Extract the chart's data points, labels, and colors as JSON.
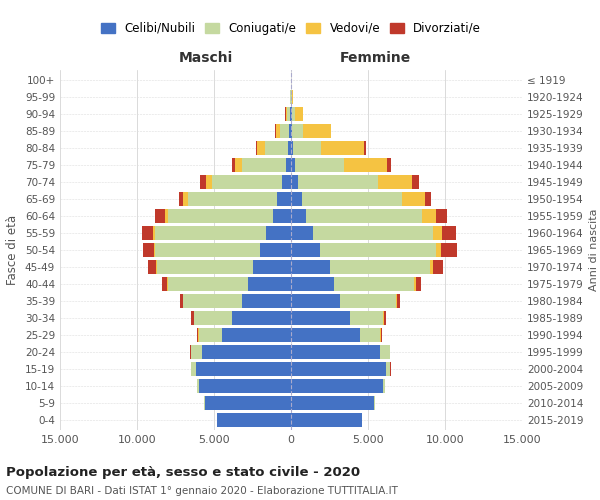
{
  "age_groups": [
    "0-4",
    "5-9",
    "10-14",
    "15-19",
    "20-24",
    "25-29",
    "30-34",
    "35-39",
    "40-44",
    "45-49",
    "50-54",
    "55-59",
    "60-64",
    "65-69",
    "70-74",
    "75-79",
    "80-84",
    "85-89",
    "90-94",
    "95-99",
    "100+"
  ],
  "birth_years": [
    "2015-2019",
    "2010-2014",
    "2005-2009",
    "2000-2004",
    "1995-1999",
    "1990-1994",
    "1985-1989",
    "1980-1984",
    "1975-1979",
    "1970-1974",
    "1965-1969",
    "1960-1964",
    "1955-1959",
    "1950-1954",
    "1945-1949",
    "1940-1944",
    "1935-1939",
    "1930-1934",
    "1925-1929",
    "1920-1924",
    "≤ 1919"
  ],
  "male": {
    "celibi": [
      4800,
      5600,
      6000,
      6200,
      5800,
      4500,
      3800,
      3200,
      2800,
      2500,
      2000,
      1600,
      1200,
      900,
      600,
      350,
      200,
      100,
      50,
      30,
      10
    ],
    "coniugati": [
      20,
      50,
      100,
      300,
      700,
      1500,
      2500,
      3800,
      5200,
      6200,
      6800,
      7200,
      6800,
      5800,
      4500,
      2800,
      1500,
      600,
      200,
      40,
      5
    ],
    "vedovi": [
      1,
      1,
      2,
      3,
      5,
      10,
      20,
      30,
      50,
      80,
      100,
      150,
      200,
      300,
      400,
      500,
      500,
      300,
      100,
      20,
      2
    ],
    "divorziati": [
      2,
      3,
      5,
      10,
      30,
      80,
      150,
      200,
      300,
      500,
      700,
      700,
      600,
      300,
      400,
      200,
      100,
      20,
      10,
      5,
      0
    ]
  },
  "female": {
    "nubili": [
      4600,
      5400,
      6000,
      6200,
      5800,
      4500,
      3800,
      3200,
      2800,
      2500,
      1900,
      1400,
      1000,
      700,
      450,
      250,
      150,
      80,
      40,
      20,
      10
    ],
    "coniugate": [
      15,
      40,
      80,
      250,
      600,
      1300,
      2200,
      3600,
      5200,
      6500,
      7500,
      7800,
      7500,
      6500,
      5200,
      3200,
      1800,
      700,
      250,
      50,
      5
    ],
    "vedove": [
      1,
      1,
      2,
      4,
      8,
      15,
      30,
      60,
      100,
      200,
      350,
      600,
      900,
      1500,
      2200,
      2800,
      2800,
      1800,
      500,
      80,
      5
    ],
    "divorziate": [
      2,
      2,
      5,
      10,
      30,
      80,
      150,
      200,
      350,
      700,
      1000,
      900,
      700,
      400,
      450,
      250,
      100,
      30,
      10,
      5,
      0
    ]
  },
  "colors": {
    "celibi_nubili": "#4472c4",
    "coniugati_e": "#c5d9a0",
    "vedovi_e": "#f5c342",
    "divorziati_e": "#c0392b"
  },
  "title": "Popolazione per età, sesso e stato civile - 2020",
  "subtitle": "COMUNE DI BARI - Dati ISTAT 1° gennaio 2020 - Elaborazione TUTTITALIA.IT",
  "xlabel_left": "Maschi",
  "xlabel_right": "Femmine",
  "ylabel_left": "Fasce di età",
  "ylabel_right": "Anni di nascita",
  "xlim": 15000,
  "background_color": "#ffffff",
  "legend_labels": [
    "Celibi/Nubili",
    "Coniugati/e",
    "Vedovi/e",
    "Divorziati/e"
  ]
}
